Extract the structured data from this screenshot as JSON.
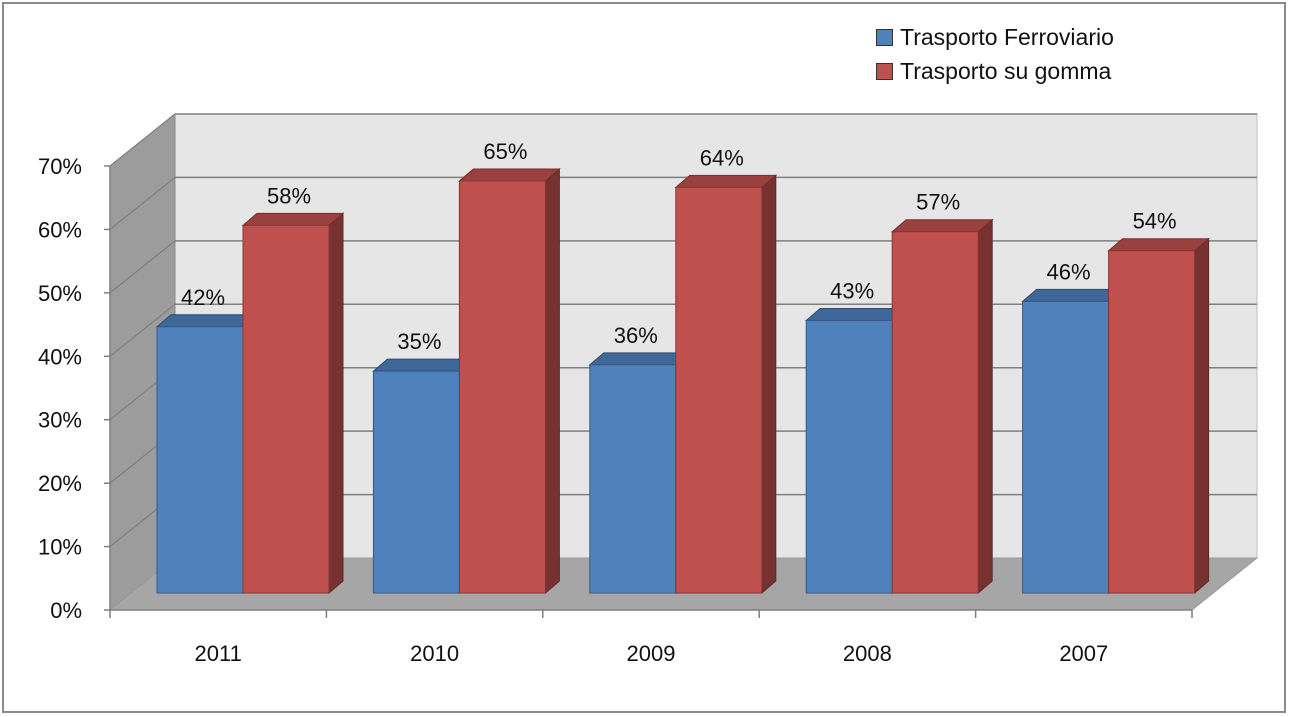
{
  "chart_data": {
    "type": "bar",
    "style": "3d-clustered-column",
    "categories": [
      "2011",
      "2010",
      "2009",
      "2008",
      "2007"
    ],
    "series": [
      {
        "name": "Trasporto Ferroviario",
        "values": [
          42,
          35,
          36,
          43,
          46
        ],
        "labels": [
          "42%",
          "35%",
          "36%",
          "43%",
          "46%"
        ],
        "color": "#4f81bd"
      },
      {
        "name": "Trasporto su gomma",
        "values": [
          58,
          65,
          64,
          57,
          54
        ],
        "labels": [
          "58%",
          "65%",
          "64%",
          "57%",
          "54%"
        ],
        "color": "#c0504d"
      }
    ],
    "y_ticks": [
      "0%",
      "10%",
      "20%",
      "30%",
      "40%",
      "50%",
      "60%",
      "70%"
    ],
    "ylim": [
      0,
      70
    ],
    "y_unit": "%",
    "grid": true,
    "legend_position": "top-right",
    "title": "",
    "xlabel": "",
    "ylabel": ""
  }
}
